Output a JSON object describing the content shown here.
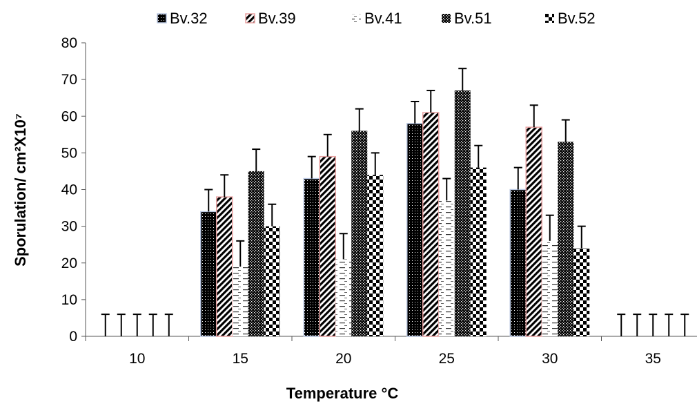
{
  "chart_data": {
    "type": "bar",
    "xlabel": "Temperature °C",
    "ylabel": "Sporulation/ cm²X10⁷",
    "ylim": [
      0,
      80
    ],
    "yticks": [
      0,
      10,
      20,
      30,
      40,
      50,
      60,
      70,
      80
    ],
    "categories": [
      "10",
      "15",
      "20",
      "25",
      "30",
      "35"
    ],
    "legend_position": "top",
    "series": [
      {
        "name": "Bv.32",
        "values": [
          0,
          34,
          43,
          58,
          40,
          0
        ],
        "errors": [
          6,
          6,
          6,
          6,
          6,
          6
        ],
        "pattern": "dots-dark",
        "border": "#b8c6e0"
      },
      {
        "name": "Bv.39",
        "values": [
          0,
          38,
          49,
          61,
          57,
          0
        ],
        "errors": [
          6,
          6,
          6,
          6,
          6,
          6
        ],
        "pattern": "diagonal",
        "border": "#e8a0a0"
      },
      {
        "name": "Bv.41",
        "values": [
          0,
          19,
          21,
          37,
          26,
          0
        ],
        "errors": [
          6,
          7,
          7,
          6,
          7,
          6
        ],
        "pattern": "dashes",
        "border": "none"
      },
      {
        "name": "Bv.51",
        "values": [
          0,
          45,
          56,
          67,
          53,
          0
        ],
        "errors": [
          6,
          6,
          6,
          6,
          6,
          6
        ],
        "pattern": "crosshatch",
        "border": "none"
      },
      {
        "name": "Bv.52",
        "values": [
          0,
          30,
          44,
          46,
          24,
          0
        ],
        "errors": [
          6,
          6,
          6,
          6,
          6,
          6
        ],
        "pattern": "checker",
        "border": "none"
      }
    ]
  }
}
